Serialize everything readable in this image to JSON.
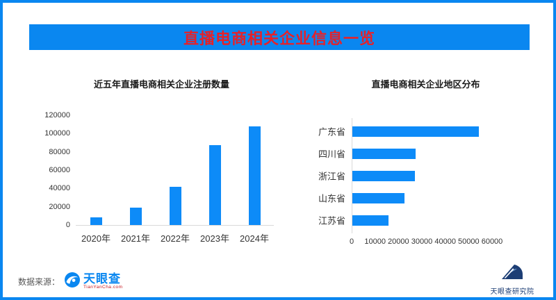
{
  "page": {
    "background_color": "#0a87f0",
    "card_color": "#ffffff"
  },
  "header": {
    "title": "直播电商相关企业信息一览",
    "banner_color": "#0a87f0",
    "title_color": "#e62129"
  },
  "chart_data": [
    {
      "type": "bar",
      "orientation": "vertical",
      "title": "近五年直播电商相关企业注册数量",
      "categories": [
        "2020年",
        "2021年",
        "2022年",
        "2023年",
        "2024年"
      ],
      "values": [
        8000,
        19000,
        42000,
        87000,
        108000
      ],
      "xlabel": "",
      "ylabel": "",
      "ylim": [
        0,
        120000
      ],
      "yticks": [
        0,
        20000,
        40000,
        60000,
        80000,
        100000,
        120000
      ],
      "grid": false,
      "legend": "none",
      "bar_color": "#0d8bf8"
    },
    {
      "type": "bar",
      "orientation": "horizontal",
      "title": "直播电商相关企业地区分布",
      "categories": [
        "广东省",
        "四川省",
        "浙江省",
        "山东省",
        "江苏省"
      ],
      "values": [
        54000,
        27000,
        26800,
        22400,
        15500
      ],
      "xlabel": "",
      "ylabel": "",
      "xlim": [
        0,
        60000
      ],
      "xticks": [
        0,
        10000,
        20000,
        30000,
        40000,
        50000,
        60000
      ],
      "grid": false,
      "legend": "none",
      "bar_color": "#0d8bf8"
    }
  ],
  "footer": {
    "source_label": "数据来源：",
    "logo_text": "天眼查",
    "logo_sub": "TianYanCha.com",
    "institute": "天眼查研究院",
    "logo_blue": "#0a87f0",
    "institute_navy": "#1d3e75"
  }
}
